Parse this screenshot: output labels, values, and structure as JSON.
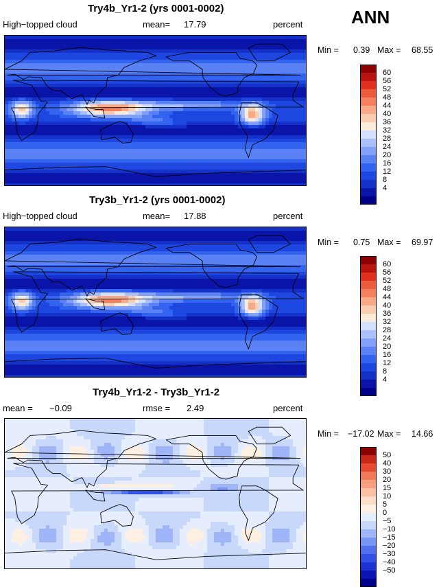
{
  "season": "ANN",
  "colors": {
    "abs_levels": [
      "#00008b",
      "#0a14a8",
      "#1432c8",
      "#1e46e0",
      "#3264f0",
      "#5a82f5",
      "#82a0f8",
      "#aac0fb",
      "#d2e0fd",
      "#fdebd9",
      "#fbcdb0",
      "#f8a987",
      "#f4805f",
      "#ee5a3c",
      "#e0301e",
      "#b81410",
      "#8b0000"
    ],
    "diff_levels": [
      "#00008b",
      "#0a14b4",
      "#1e32d2",
      "#3250e6",
      "#5070f0",
      "#7896f5",
      "#a0b4f8",
      "#c8d8fb",
      "#e6eefd",
      "#fdf0e2",
      "#fcdcc6",
      "#fac0a2",
      "#f7a07e",
      "#f2785a",
      "#e64b32",
      "#c8281a",
      "#8b0000"
    ]
  },
  "panels": [
    {
      "title": "Try4b_Yr1-2 (yrs 0001-0002)",
      "left_label": "High−topped cloud",
      "mean_label": "mean=",
      "mean_value": "17.79",
      "units": "percent",
      "min_label": "Min =",
      "min_value": "0.39",
      "max_label": "Max =",
      "max_value": "68.55"
    },
    {
      "title": "Try3b_Yr1-2 (yrs 0001-0002)",
      "left_label": "High−topped cloud",
      "mean_label": "mean=",
      "mean_value": "17.88",
      "units": "percent",
      "min_label": "Min =",
      "min_value": "0.75",
      "max_label": "Max =",
      "max_value": "69.97"
    },
    {
      "title": "Try4b_Yr1-2 - Try3b_Yr1-2",
      "left_label": "mean =",
      "left_value": "−0.09",
      "mid_label": "rmse =",
      "mid_value": "2.49",
      "units": "percent",
      "min_label": "Min =",
      "min_value": "−17.02",
      "max_label": "Max =",
      "max_value": "14.66"
    }
  ],
  "chart_data": [
    {
      "type": "heatmap",
      "title": "Try4b_Yr1-2 (yrs 0001-0002)",
      "variable": "High-topped cloud",
      "units": "percent",
      "mean": 17.79,
      "min": 0.39,
      "max": 68.55,
      "colorbar_levels": [
        4,
        8,
        12,
        16,
        20,
        24,
        28,
        32,
        36,
        40,
        44,
        48,
        52,
        56,
        60
      ]
    },
    {
      "type": "heatmap",
      "title": "Try3b_Yr1-2 (yrs 0001-0002)",
      "variable": "High-topped cloud",
      "units": "percent",
      "mean": 17.88,
      "min": 0.75,
      "max": 69.97,
      "colorbar_levels": [
        4,
        8,
        12,
        16,
        20,
        24,
        28,
        32,
        36,
        40,
        44,
        48,
        52,
        56,
        60
      ]
    },
    {
      "type": "heatmap",
      "title": "Try4b_Yr1-2 - Try3b_Yr1-2",
      "units": "percent",
      "mean": -0.09,
      "rmse": 2.49,
      "min": -17.02,
      "max": 14.66,
      "colorbar_levels": [
        -50,
        -40,
        -30,
        -20,
        -15,
        -10,
        -5,
        0,
        5,
        10,
        15,
        20,
        30,
        40,
        50
      ]
    }
  ],
  "colorbar_labels": {
    "abs": [
      "60",
      "56",
      "52",
      "48",
      "44",
      "40",
      "36",
      "32",
      "28",
      "24",
      "20",
      "16",
      "12",
      "8",
      "4"
    ],
    "diff": [
      "50",
      "40",
      "30",
      "20",
      "15",
      "10",
      "5",
      "0",
      "−5",
      "−10",
      "−15",
      "−20",
      "−30",
      "−40",
      "−50"
    ]
  }
}
